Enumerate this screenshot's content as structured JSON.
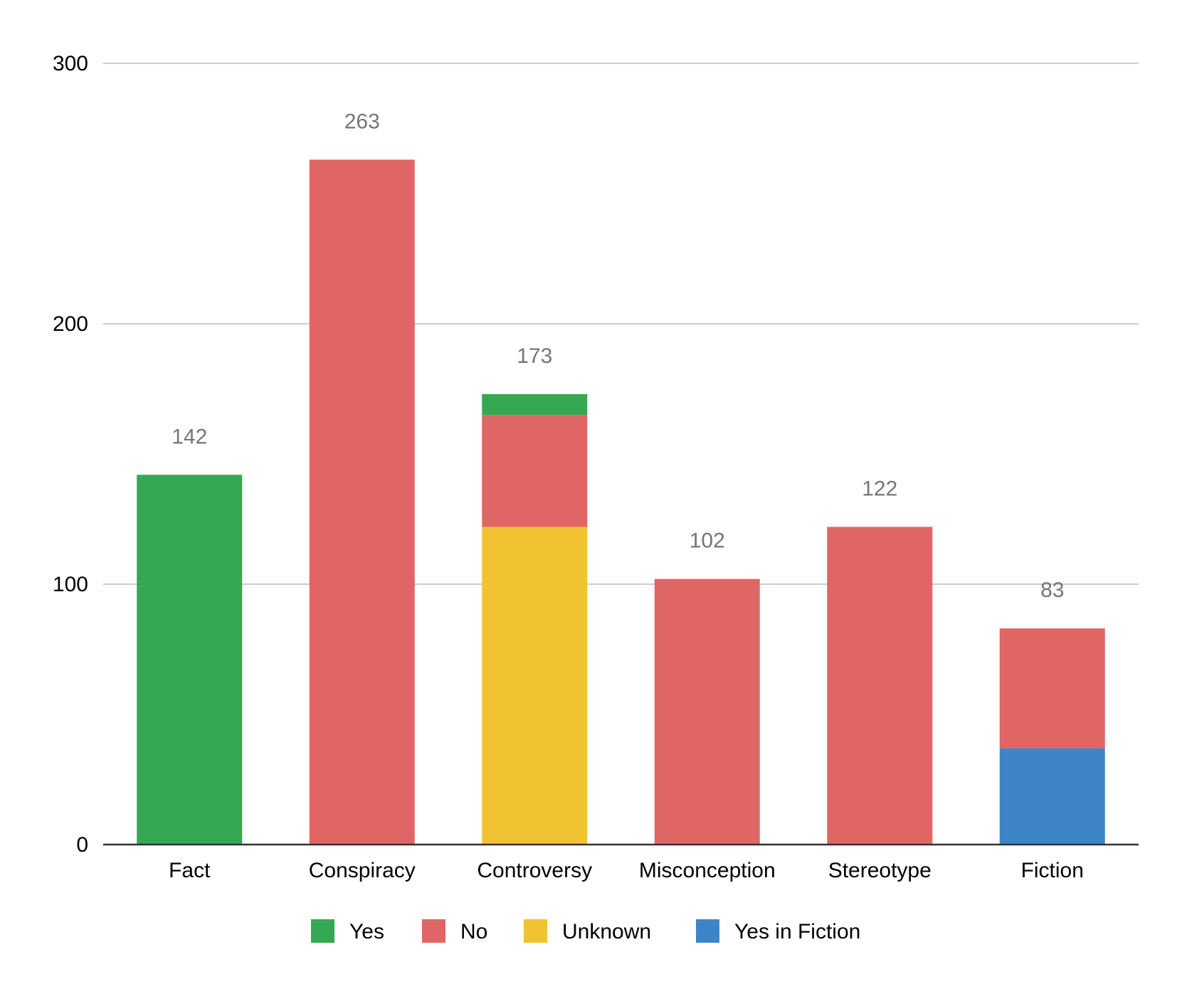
{
  "chart_data": {
    "type": "bar",
    "stacked": true,
    "categories": [
      "Fact",
      "Conspiracy",
      "Controversy",
      "Misconception",
      "Stereotype",
      "Fiction"
    ],
    "series": [
      {
        "name": "Yes",
        "color": "#34a853",
        "values": [
          142,
          0,
          8,
          0,
          0,
          0
        ]
      },
      {
        "name": "No",
        "color": "#e06666",
        "values": [
          0,
          263,
          43,
          102,
          122,
          46
        ]
      },
      {
        "name": "Unknown",
        "color": "#f1c232",
        "values": [
          0,
          0,
          122,
          0,
          0,
          0
        ]
      },
      {
        "name": "Yes in Fiction",
        "color": "#3d85c6",
        "values": [
          0,
          0,
          0,
          0,
          0,
          37
        ]
      }
    ],
    "stack_order": [
      "Unknown",
      "Yes in Fiction",
      "No",
      "Yes"
    ],
    "totals": [
      142,
      263,
      173,
      102,
      122,
      83
    ],
    "ylim": [
      0,
      300
    ],
    "yticks": [
      0,
      100,
      200,
      300
    ],
    "grid": true,
    "legend_position": "bottom",
    "title": "",
    "xlabel": "",
    "ylabel": ""
  }
}
